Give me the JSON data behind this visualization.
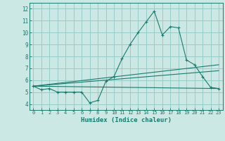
{
  "title": "",
  "xlabel": "Humidex (Indice chaleur)",
  "background_color": "#cce8e4",
  "grid_color": "#99ccc7",
  "line_color": "#1a7a6e",
  "xlim": [
    -0.5,
    23.5
  ],
  "ylim": [
    3.5,
    12.5
  ],
  "xticks": [
    0,
    1,
    2,
    3,
    4,
    5,
    6,
    7,
    8,
    9,
    10,
    11,
    12,
    13,
    14,
    15,
    16,
    17,
    18,
    19,
    20,
    21,
    22,
    23
  ],
  "yticks": [
    4,
    5,
    6,
    7,
    8,
    9,
    10,
    11,
    12
  ],
  "series1": [
    5.5,
    5.2,
    5.3,
    5.0,
    5.0,
    5.0,
    5.0,
    4.1,
    4.3,
    5.9,
    6.3,
    7.8,
    9.0,
    10.0,
    10.9,
    11.8,
    9.8,
    10.5,
    10.4,
    7.7,
    7.3,
    6.3,
    5.4,
    5.3
  ],
  "series2_x": [
    0,
    23
  ],
  "series2_y": [
    5.5,
    5.3
  ],
  "series3_x": [
    0,
    23
  ],
  "series3_y": [
    5.5,
    6.8
  ],
  "series4_x": [
    0,
    23
  ],
  "series4_y": [
    5.5,
    7.3
  ]
}
